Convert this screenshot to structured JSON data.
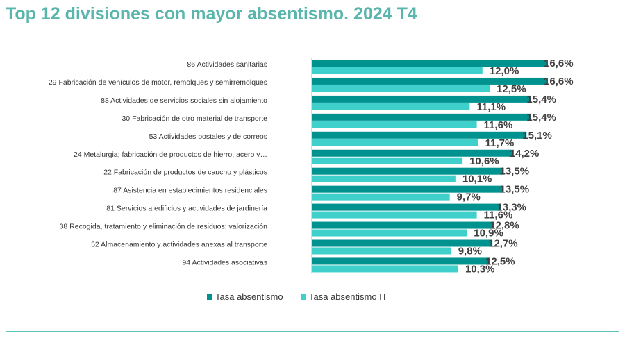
{
  "title": "Top 12 divisiones con mayor absentismo. 2024 T4",
  "chart_data": {
    "type": "bar",
    "orientation": "horizontal",
    "categories": [
      "86 Actividades sanitarias",
      "29 Fabricación de vehículos de motor, remolques y semirremolques",
      "88 Actividades de servicios sociales sin alojamiento",
      "30 Fabricación de otro material de transporte",
      "53 Actividades postales y de correos",
      "24 Metalurgia; fabricación de productos de hierro, acero y…",
      "22 Fabricación de productos de caucho y plásticos",
      "87 Asistencia en establecimientos residenciales",
      "81 Servicios a edificios y actividades de jardinería",
      "38 Recogida, tratamiento y eliminación de residuos; valorización",
      "52 Almacenamiento y actividades anexas al transporte",
      "94 Actividades asociativas"
    ],
    "series": [
      {
        "name": "Tasa absentismo",
        "color": "#00928f",
        "values": [
          16.6,
          16.6,
          15.4,
          15.4,
          15.1,
          14.2,
          13.5,
          13.5,
          13.3,
          12.8,
          12.7,
          12.5
        ],
        "labels": [
          "16,6%",
          "16,6%",
          "15,4%",
          "15,4%",
          "15,1%",
          "14,2%",
          "13,5%",
          "13,5%",
          "13,3%",
          "12,8%",
          "12,7%",
          "12,5%"
        ]
      },
      {
        "name": "Tasa absentismo IT",
        "color": "#3fd0cc",
        "values": [
          12.0,
          12.5,
          11.1,
          11.6,
          11.7,
          10.6,
          10.1,
          9.7,
          11.6,
          10.9,
          9.8,
          10.3
        ],
        "labels": [
          "12,0%",
          "12,5%",
          "11,1%",
          "11,6%",
          "11,7%",
          "10,6%",
          "10,1%",
          "9,7%",
          "11,6%",
          "10,9%",
          "9,8%",
          "10,3%"
        ]
      }
    ],
    "xlim": [
      0,
      16.6
    ],
    "legend_position": "bottom-center"
  }
}
